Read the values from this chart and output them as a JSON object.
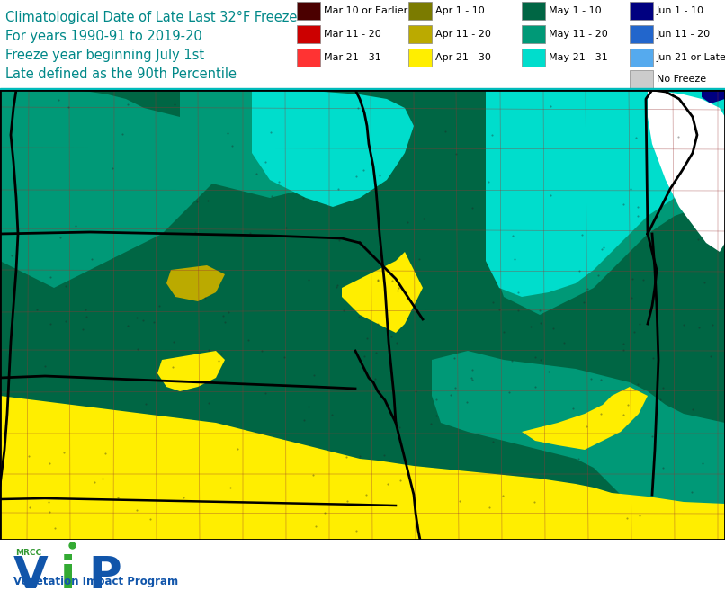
{
  "title_line1": "Climatological Date of Late Last 32°F Freeze",
  "title_line2": "For years 1990-91 to 2019-20",
  "title_line3": "Freeze year beginning July 1st",
  "title_line4": "Late defined as the 90th Percentile",
  "title_color": "#008888",
  "title_fontsize": 10.5,
  "legend_items": [
    {
      "label": "Mar 10 or Earlier",
      "color": "#4B0000",
      "row": 0,
      "col": 0
    },
    {
      "label": "Mar 11 - 20",
      "color": "#CC0000",
      "row": 1,
      "col": 0
    },
    {
      "label": "Mar 21 - 31",
      "color": "#FF3333",
      "row": 2,
      "col": 0
    },
    {
      "label": "Apr 1 - 10",
      "color": "#7B7B00",
      "row": 0,
      "col": 1
    },
    {
      "label": "Apr 11 - 20",
      "color": "#BBAA00",
      "row": 1,
      "col": 1
    },
    {
      "label": "Apr 21 - 30",
      "color": "#FFEE00",
      "row": 2,
      "col": 1
    },
    {
      "label": "May 1 - 10",
      "color": "#006644",
      "row": 0,
      "col": 2
    },
    {
      "label": "May 11 - 20",
      "color": "#009977",
      "row": 1,
      "col": 2
    },
    {
      "label": "May 21 - 31",
      "color": "#00DDCC",
      "row": 2,
      "col": 2
    },
    {
      "label": "Jun 1 - 10",
      "color": "#000080",
      "row": 0,
      "col": 3
    },
    {
      "label": "Jun 11 - 20",
      "color": "#2266CC",
      "row": 1,
      "col": 3
    },
    {
      "label": "Jun 21 or Later",
      "color": "#55AAEE",
      "row": 2,
      "col": 3
    },
    {
      "label": "No Freeze",
      "color": "#CCCCCC",
      "row": 3,
      "col": 3
    }
  ],
  "map_colors": {
    "may1_10": "#006644",
    "may11_20": "#009977",
    "may21_31": "#00DDCC",
    "apr21_30": "#FFEE00",
    "apr11_20": "#BBAA00",
    "white": "#FFFFFF",
    "jun1_10": "#000080"
  },
  "county_line_color": "#993333",
  "state_line_color": "#000000",
  "fig_bg": "#FFFFFF",
  "vip_blue": "#1155AA",
  "vip_green": "#33AA33",
  "mrcc_green": "#339933"
}
